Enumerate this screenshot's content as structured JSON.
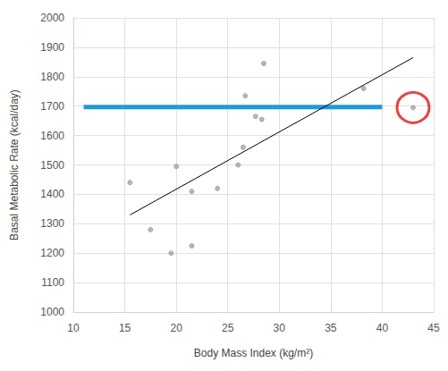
{
  "chart_data": {
    "type": "scatter",
    "x_label": "Body Mass Index (kg/m²)",
    "y_label": "Basal Metabolic Rate (kcal/day)",
    "x": [
      15.5,
      17.5,
      19.5,
      20,
      21.5,
      21.5,
      24,
      26,
      26.5,
      26.7,
      27.7,
      28.3,
      28.5,
      38.2,
      43
    ],
    "values": [
      1440,
      1280,
      1200,
      1495,
      1410,
      1225,
      1420,
      1500,
      1560,
      1735,
      1665,
      1655,
      1845,
      1760,
      1695
    ],
    "color": "#a6a6a6",
    "marker": "circle",
    "xlim": [
      10,
      45
    ],
    "xticks": [
      10,
      15,
      20,
      25,
      30,
      35,
      40,
      45
    ],
    "ylim": [
      1000,
      2000
    ],
    "yticks": [
      1000,
      1100,
      1200,
      1300,
      1400,
      1500,
      1600,
      1700,
      1800,
      1900,
      2000
    ],
    "grid": true,
    "trend_line": {
      "x": [
        15.5,
        43
      ],
      "values": [
        1330,
        1865
      ],
      "color": "#000000"
    },
    "marked_line": {
      "x": [
        11,
        40
      ],
      "values": [
        1697,
        1697
      ],
      "color": "#1e9bd7"
    },
    "circled_point": {
      "x": 43,
      "y": 1695,
      "color": "#e0151b"
    }
  }
}
